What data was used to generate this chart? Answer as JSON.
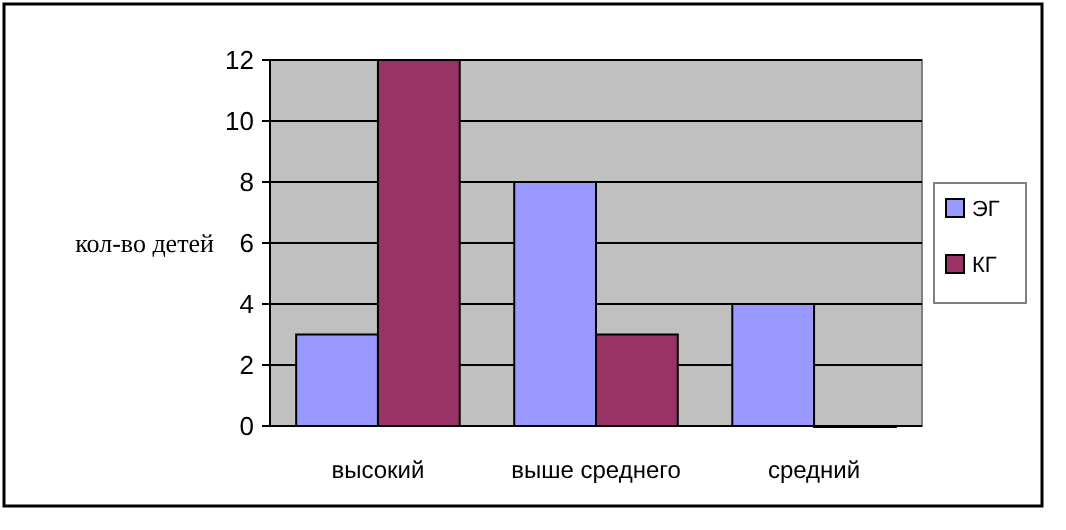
{
  "chart_data": {
    "type": "bar",
    "ylabel": "кол-во детей",
    "categories": [
      "высокий",
      "выше среднего",
      "средний"
    ],
    "series": [
      {
        "name": "ЭГ",
        "color": "#9999ff",
        "values": [
          3,
          8,
          4
        ]
      },
      {
        "name": "КГ",
        "color": "#993366",
        "values": [
          12,
          3,
          0
        ]
      }
    ],
    "ylim": [
      0,
      12
    ],
    "yticks": [
      0,
      2,
      4,
      6,
      8,
      10,
      12
    ],
    "grid": "y",
    "legend": "right"
  }
}
